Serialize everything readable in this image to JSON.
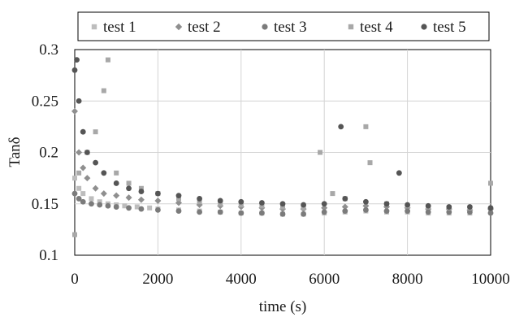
{
  "chart_data": {
    "type": "scatter",
    "title": "",
    "xlabel": "time (s)",
    "ylabel": "Tanδ",
    "xlim": [
      0,
      10000
    ],
    "ylim": [
      0.1,
      0.3
    ],
    "x_ticks": [
      0,
      2000,
      4000,
      6000,
      8000,
      10000
    ],
    "y_ticks": [
      0.1,
      0.15,
      0.2,
      0.25,
      0.3
    ],
    "x_tick_labels": [
      "0",
      "2000",
      "4000",
      "6000",
      "8000",
      "10000"
    ],
    "y_tick_labels": [
      "0.1",
      "0.15",
      "0.2",
      "0.25",
      "0.3"
    ],
    "grid": true,
    "legend_position": "top",
    "series": [
      {
        "name": "test 1",
        "marker": "square",
        "color": "#bdbdbd",
        "x": [
          0,
          100,
          200,
          400,
          600,
          800,
          1000,
          1200,
          1500,
          1800,
          2000,
          2500,
          3000,
          3500,
          4000,
          4500,
          5000,
          5500,
          6000,
          6500,
          7000,
          7500,
          8000,
          8500,
          9000,
          9500,
          10000
        ],
        "y": [
          0.175,
          0.165,
          0.16,
          0.155,
          0.152,
          0.15,
          0.149,
          0.148,
          0.147,
          0.146,
          0.145,
          0.144,
          0.143,
          0.142,
          0.141,
          0.141,
          0.14,
          0.14,
          0.141,
          0.142,
          0.143,
          0.142,
          0.142,
          0.141,
          0.141,
          0.141,
          0.142
        ]
      },
      {
        "name": "test 2",
        "marker": "diamond",
        "color": "#8f8f8f",
        "x": [
          0,
          100,
          200,
          300,
          500,
          700,
          1000,
          1300,
          1600,
          2000,
          2500,
          3000,
          3500,
          4000,
          4500,
          5000,
          5500,
          6000,
          6500,
          7000,
          7500,
          8000,
          8500,
          9000,
          9500,
          10000
        ],
        "y": [
          0.24,
          0.2,
          0.185,
          0.175,
          0.165,
          0.16,
          0.158,
          0.156,
          0.154,
          0.153,
          0.151,
          0.149,
          0.148,
          0.147,
          0.146,
          0.145,
          0.145,
          0.146,
          0.147,
          0.148,
          0.147,
          0.146,
          0.145,
          0.145,
          0.144,
          0.145
        ]
      },
      {
        "name": "test 3",
        "marker": "circle",
        "color": "#7b7b7b",
        "x": [
          0,
          100,
          200,
          400,
          600,
          800,
          1000,
          1300,
          1600,
          2000,
          2500,
          3000,
          3500,
          4000,
          4500,
          5000,
          5500,
          6000,
          6500,
          7000,
          7500,
          8000,
          8500,
          9000,
          9500,
          10000
        ],
        "y": [
          0.16,
          0.155,
          0.152,
          0.15,
          0.149,
          0.148,
          0.147,
          0.146,
          0.145,
          0.144,
          0.143,
          0.142,
          0.142,
          0.141,
          0.141,
          0.14,
          0.14,
          0.142,
          0.143,
          0.144,
          0.143,
          0.143,
          0.142,
          0.142,
          0.142,
          0.141
        ]
      },
      {
        "name": "test 4",
        "marker": "square",
        "color": "#a8a8a8",
        "x": [
          0,
          100,
          300,
          500,
          700,
          800,
          1000,
          1300,
          1600,
          2000,
          2500,
          3000,
          3500,
          4000,
          4500,
          5000,
          5500,
          5900,
          6200,
          6500,
          7000,
          7100,
          7500,
          8000,
          8500,
          9000,
          9500,
          10000
        ],
        "y": [
          0.12,
          0.18,
          0.2,
          0.22,
          0.26,
          0.29,
          0.18,
          0.17,
          0.165,
          0.16,
          0.155,
          0.152,
          0.15,
          0.149,
          0.148,
          0.147,
          0.146,
          0.2,
          0.16,
          0.155,
          0.225,
          0.19,
          0.15,
          0.148,
          0.147,
          0.146,
          0.146,
          0.17
        ]
      },
      {
        "name": "test 5",
        "marker": "circle",
        "color": "#555555",
        "x": [
          0,
          50,
          100,
          200,
          300,
          500,
          700,
          1000,
          1300,
          1600,
          2000,
          2500,
          3000,
          3500,
          4000,
          4500,
          5000,
          5500,
          6000,
          6400,
          6500,
          7000,
          7500,
          7800,
          8000,
          8500,
          9000,
          9500,
          10000
        ],
        "y": [
          0.28,
          0.29,
          0.25,
          0.22,
          0.2,
          0.19,
          0.18,
          0.17,
          0.165,
          0.162,
          0.16,
          0.158,
          0.155,
          0.153,
          0.152,
          0.151,
          0.15,
          0.149,
          0.15,
          0.225,
          0.155,
          0.152,
          0.15,
          0.18,
          0.149,
          0.148,
          0.147,
          0.147,
          0.146
        ]
      }
    ]
  }
}
